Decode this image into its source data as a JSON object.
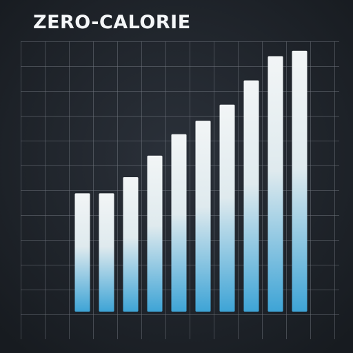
{
  "chart_data": {
    "type": "bar",
    "title": "ZERO-CALORIE",
    "categories": [
      null,
      null,
      null,
      null,
      null,
      null,
      null,
      null,
      null,
      null
    ],
    "values": [
      44,
      44,
      50,
      58,
      66,
      71,
      77,
      86,
      95,
      97
    ],
    "color": "#3ea4d6",
    "ylim": [
      0,
      100
    ]
  }
}
